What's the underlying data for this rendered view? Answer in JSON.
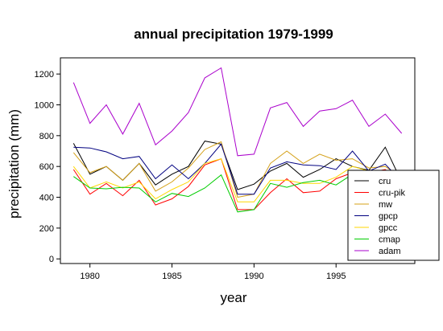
{
  "chart_data": {
    "type": "line",
    "title": "annual precipitation 1979-1999",
    "xlabel": "year",
    "ylabel": "precipitation (mm)",
    "x": [
      1979,
      1980,
      1981,
      1982,
      1983,
      1984,
      1985,
      1986,
      1987,
      1988,
      1989,
      1990,
      1991,
      1992,
      1993,
      1994,
      1995,
      1996,
      1997,
      1998,
      1999
    ],
    "xlim": [
      1978.2,
      1999.8
    ],
    "ylim": [
      -30,
      1305
    ],
    "xticks": [
      1980,
      1985,
      1990,
      1995
    ],
    "yticks": [
      0,
      200,
      400,
      600,
      800,
      1000,
      1200
    ],
    "grid": false,
    "legend_position": "bottom-right",
    "series": [
      {
        "name": "cru",
        "color": "#000000",
        "values": [
          750,
          550,
          600,
          510,
          620,
          480,
          550,
          600,
          765,
          745,
          450,
          485,
          570,
          620,
          530,
          580,
          650,
          600,
          575,
          725,
          500
        ]
      },
      {
        "name": "cru-pik",
        "color": "#ff0000",
        "values": [
          580,
          420,
          490,
          410,
          510,
          350,
          390,
          470,
          610,
          650,
          320,
          320,
          430,
          520,
          430,
          440,
          520,
          560,
          560,
          580,
          500
        ]
      },
      {
        "name": "mw",
        "color": "#d4a017",
        "values": [
          690,
          560,
          600,
          510,
          620,
          440,
          500,
          590,
          710,
          760,
          400,
          420,
          620,
          700,
          620,
          680,
          640,
          650,
          590,
          600,
          530
        ]
      },
      {
        "name": "gpcp",
        "color": "#000080",
        "values": [
          725,
          720,
          695,
          650,
          665,
          520,
          610,
          520,
          620,
          745,
          420,
          420,
          590,
          630,
          610,
          605,
          580,
          700,
          570,
          615,
          500
        ]
      },
      {
        "name": "gpcc",
        "color": "#ffd700",
        "values": [
          600,
          460,
          500,
          460,
          500,
          390,
          450,
          500,
          620,
          650,
          370,
          370,
          510,
          510,
          490,
          490,
          530,
          600,
          570,
          550,
          480
        ]
      },
      {
        "name": "cmap",
        "color": "#00cc00",
        "values": [
          535,
          460,
          455,
          465,
          460,
          370,
          425,
          405,
          460,
          545,
          305,
          320,
          490,
          465,
          495,
          510,
          480,
          550,
          490,
          410,
          470
        ]
      },
      {
        "name": "adam",
        "color": "#aa00cc",
        "values": [
          1145,
          880,
          1000,
          810,
          1010,
          740,
          830,
          950,
          1175,
          1240,
          670,
          680,
          980,
          1015,
          860,
          960,
          975,
          1030,
          860,
          940,
          815
        ]
      }
    ]
  }
}
